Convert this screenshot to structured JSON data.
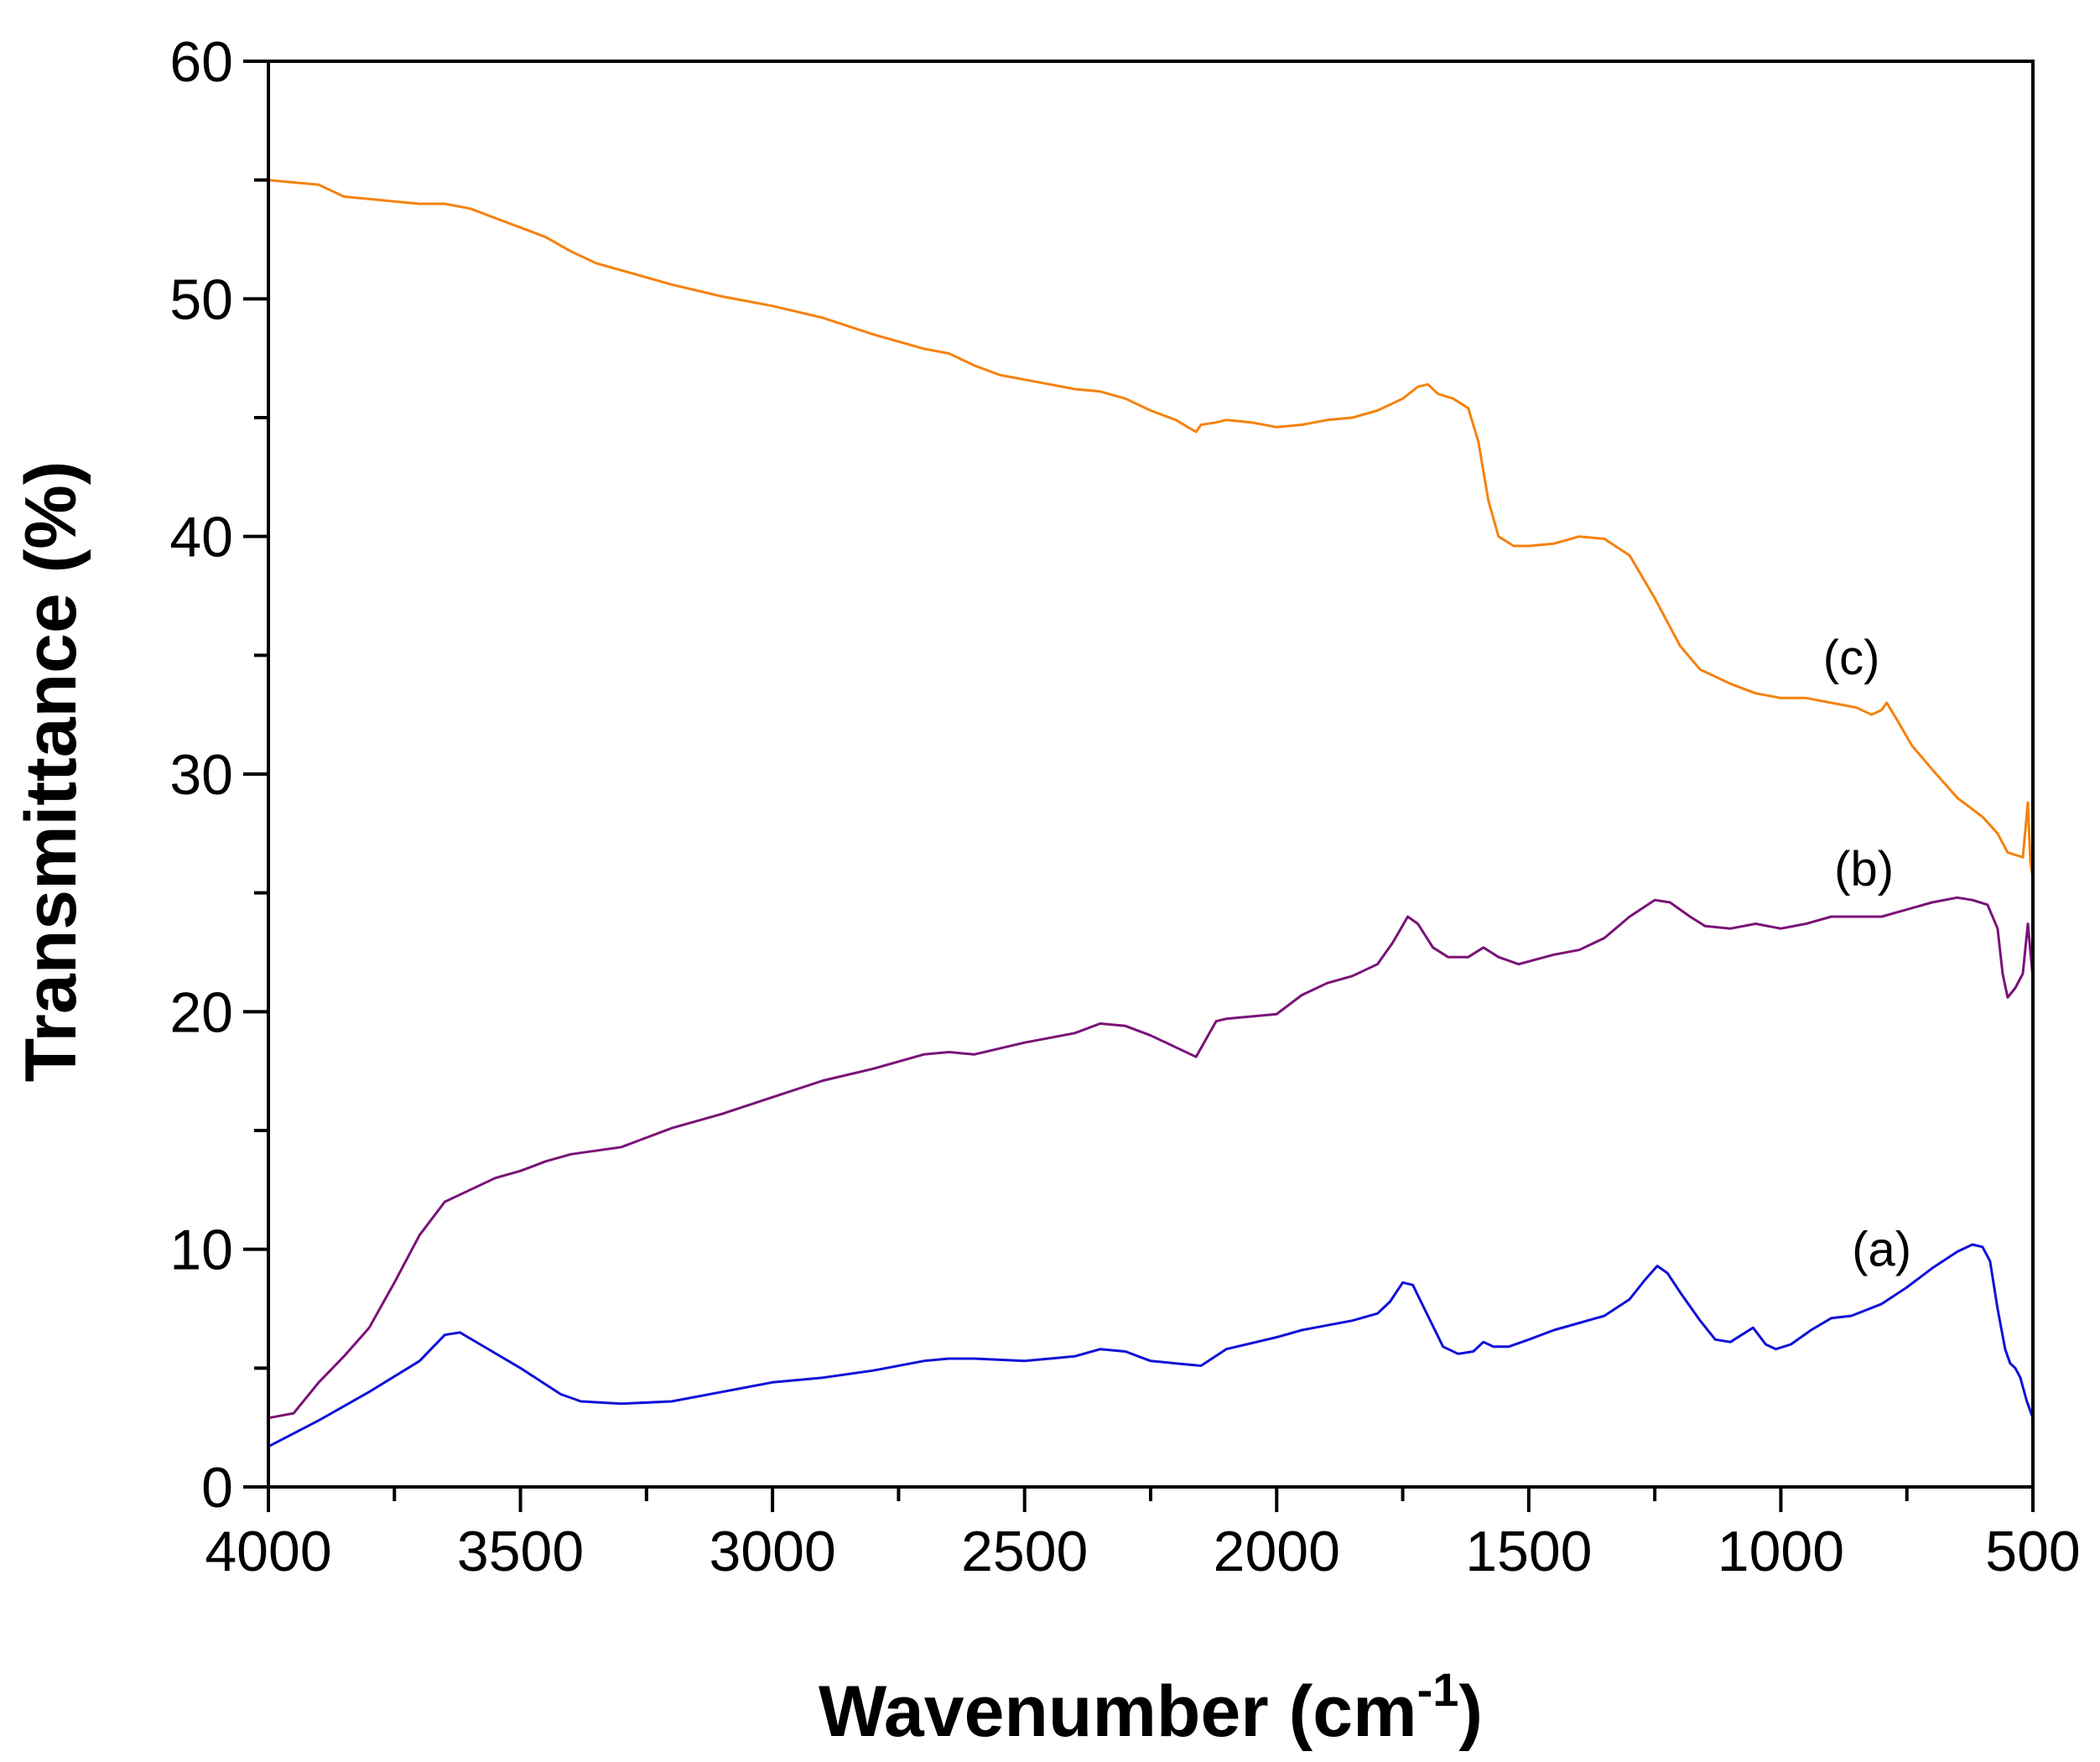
{
  "chart_data": {
    "type": "line",
    "title": "",
    "xlabel": "Wavenumber (cm",
    "xlabel_sup": "-1",
    "xlabel_tail": ")",
    "ylabel": "Transmittance (%)",
    "xlim": [
      4000,
      500
    ],
    "ylim": [
      0,
      60
    ],
    "x_ticks": [
      4000,
      3500,
      3000,
      2500,
      2000,
      1500,
      1000,
      500
    ],
    "x_tick_labels": [
      "4000",
      "3500",
      "3000",
      "2500",
      "2000",
      "1500",
      "1000",
      "500"
    ],
    "x_minor_ticks": [
      3750,
      3250,
      2750,
      2250,
      1750,
      1250,
      750
    ],
    "y_ticks": [
      0,
      10,
      20,
      30,
      40,
      50,
      60
    ],
    "y_tick_labels": [
      "0",
      "10",
      "20",
      "30",
      "40",
      "50",
      "60"
    ],
    "y_minor_ticks": [
      5,
      15,
      25,
      35,
      45,
      55
    ],
    "grid": false,
    "series": [
      {
        "name": "(a)",
        "color": "#1010d8",
        "label_at": [
          800,
          9.3
        ],
        "points": [
          [
            4000,
            1.7
          ],
          [
            3900,
            2.8
          ],
          [
            3800,
            4.0
          ],
          [
            3700,
            5.3
          ],
          [
            3650,
            6.4
          ],
          [
            3620,
            6.5
          ],
          [
            3580,
            6.0
          ],
          [
            3500,
            5.0
          ],
          [
            3420,
            3.9
          ],
          [
            3380,
            3.6
          ],
          [
            3300,
            3.5
          ],
          [
            3200,
            3.6
          ],
          [
            3100,
            4.0
          ],
          [
            3000,
            4.4
          ],
          [
            2900,
            4.6
          ],
          [
            2800,
            4.9
          ],
          [
            2700,
            5.3
          ],
          [
            2650,
            5.4
          ],
          [
            2600,
            5.4
          ],
          [
            2500,
            5.3
          ],
          [
            2400,
            5.5
          ],
          [
            2350,
            5.8
          ],
          [
            2300,
            5.7
          ],
          [
            2250,
            5.3
          ],
          [
            2200,
            5.2
          ],
          [
            2150,
            5.1
          ],
          [
            2100,
            5.8
          ],
          [
            2000,
            6.3
          ],
          [
            1950,
            6.6
          ],
          [
            1900,
            6.8
          ],
          [
            1850,
            7.0
          ],
          [
            1800,
            7.3
          ],
          [
            1775,
            7.8
          ],
          [
            1750,
            8.6
          ],
          [
            1730,
            8.5
          ],
          [
            1700,
            7.2
          ],
          [
            1670,
            5.9
          ],
          [
            1640,
            5.6
          ],
          [
            1610,
            5.7
          ],
          [
            1590,
            6.1
          ],
          [
            1570,
            5.9
          ],
          [
            1540,
            5.9
          ],
          [
            1500,
            6.2
          ],
          [
            1450,
            6.6
          ],
          [
            1400,
            6.9
          ],
          [
            1350,
            7.2
          ],
          [
            1300,
            7.9
          ],
          [
            1270,
            8.7
          ],
          [
            1245,
            9.3
          ],
          [
            1225,
            9.0
          ],
          [
            1200,
            8.2
          ],
          [
            1160,
            7.0
          ],
          [
            1130,
            6.2
          ],
          [
            1100,
            6.1
          ],
          [
            1070,
            6.5
          ],
          [
            1055,
            6.7
          ],
          [
            1030,
            6.0
          ],
          [
            1010,
            5.8
          ],
          [
            980,
            6.0
          ],
          [
            940,
            6.6
          ],
          [
            900,
            7.1
          ],
          [
            860,
            7.2
          ],
          [
            800,
            7.7
          ],
          [
            750,
            8.4
          ],
          [
            700,
            9.2
          ],
          [
            650,
            9.9
          ],
          [
            620,
            10.2
          ],
          [
            600,
            10.1
          ],
          [
            585,
            9.5
          ],
          [
            570,
            7.5
          ],
          [
            555,
            5.8
          ],
          [
            545,
            5.2
          ],
          [
            535,
            5.0
          ],
          [
            525,
            4.6
          ],
          [
            512,
            3.6
          ],
          [
            500,
            2.9
          ]
        ]
      },
      {
        "name": "(b)",
        "color": "#7a1278",
        "label_at": [
          835,
          25.3
        ],
        "points": [
          [
            4000,
            2.9
          ],
          [
            3950,
            3.1
          ],
          [
            3900,
            4.4
          ],
          [
            3850,
            5.5
          ],
          [
            3800,
            6.7
          ],
          [
            3750,
            8.6
          ],
          [
            3700,
            10.6
          ],
          [
            3650,
            12.0
          ],
          [
            3600,
            12.5
          ],
          [
            3550,
            13.0
          ],
          [
            3500,
            13.3
          ],
          [
            3450,
            13.7
          ],
          [
            3400,
            14.0
          ],
          [
            3300,
            14.3
          ],
          [
            3200,
            15.1
          ],
          [
            3100,
            15.7
          ],
          [
            3000,
            16.4
          ],
          [
            2900,
            17.1
          ],
          [
            2800,
            17.6
          ],
          [
            2700,
            18.2
          ],
          [
            2650,
            18.3
          ],
          [
            2600,
            18.2
          ],
          [
            2500,
            18.7
          ],
          [
            2400,
            19.1
          ],
          [
            2350,
            19.5
          ],
          [
            2300,
            19.4
          ],
          [
            2250,
            19.0
          ],
          [
            2200,
            18.5
          ],
          [
            2160,
            18.1
          ],
          [
            2120,
            19.6
          ],
          [
            2100,
            19.7
          ],
          [
            2000,
            19.9
          ],
          [
            1950,
            20.7
          ],
          [
            1900,
            21.2
          ],
          [
            1850,
            21.5
          ],
          [
            1800,
            22.0
          ],
          [
            1770,
            22.9
          ],
          [
            1740,
            24.0
          ],
          [
            1720,
            23.7
          ],
          [
            1690,
            22.7
          ],
          [
            1660,
            22.3
          ],
          [
            1620,
            22.3
          ],
          [
            1590,
            22.7
          ],
          [
            1560,
            22.3
          ],
          [
            1520,
            22.0
          ],
          [
            1450,
            22.4
          ],
          [
            1400,
            22.6
          ],
          [
            1350,
            23.1
          ],
          [
            1300,
            24.0
          ],
          [
            1250,
            24.7
          ],
          [
            1220,
            24.6
          ],
          [
            1180,
            24.0
          ],
          [
            1150,
            23.6
          ],
          [
            1100,
            23.5
          ],
          [
            1050,
            23.7
          ],
          [
            1000,
            23.5
          ],
          [
            950,
            23.7
          ],
          [
            900,
            24.0
          ],
          [
            800,
            24.0
          ],
          [
            700,
            24.6
          ],
          [
            650,
            24.8
          ],
          [
            620,
            24.7
          ],
          [
            590,
            24.5
          ],
          [
            570,
            23.5
          ],
          [
            560,
            21.6
          ],
          [
            550,
            20.6
          ],
          [
            535,
            21.0
          ],
          [
            520,
            21.6
          ],
          [
            510,
            23.7
          ],
          [
            500,
            21.4
          ]
        ]
      },
      {
        "name": "(c)",
        "color": "#f5820f",
        "label_at": [
          860,
          34.2
        ],
        "points": [
          [
            4000,
            55.0
          ],
          [
            3950,
            54.9
          ],
          [
            3900,
            54.8
          ],
          [
            3850,
            54.3
          ],
          [
            3800,
            54.2
          ],
          [
            3750,
            54.1
          ],
          [
            3700,
            54.0
          ],
          [
            3650,
            54.0
          ],
          [
            3600,
            53.8
          ],
          [
            3550,
            53.4
          ],
          [
            3500,
            53.0
          ],
          [
            3450,
            52.6
          ],
          [
            3400,
            52.0
          ],
          [
            3350,
            51.5
          ],
          [
            3300,
            51.2
          ],
          [
            3250,
            50.9
          ],
          [
            3200,
            50.6
          ],
          [
            3100,
            50.1
          ],
          [
            3000,
            49.7
          ],
          [
            2900,
            49.2
          ],
          [
            2800,
            48.5
          ],
          [
            2700,
            47.9
          ],
          [
            2650,
            47.7
          ],
          [
            2600,
            47.2
          ],
          [
            2550,
            46.8
          ],
          [
            2500,
            46.6
          ],
          [
            2450,
            46.4
          ],
          [
            2400,
            46.2
          ],
          [
            2350,
            46.1
          ],
          [
            2300,
            45.8
          ],
          [
            2250,
            45.3
          ],
          [
            2200,
            44.9
          ],
          [
            2160,
            44.4
          ],
          [
            2150,
            44.7
          ],
          [
            2120,
            44.8
          ],
          [
            2100,
            44.9
          ],
          [
            2050,
            44.8
          ],
          [
            2000,
            44.6
          ],
          [
            1950,
            44.7
          ],
          [
            1900,
            44.9
          ],
          [
            1850,
            45.0
          ],
          [
            1800,
            45.3
          ],
          [
            1750,
            45.8
          ],
          [
            1720,
            46.3
          ],
          [
            1700,
            46.4
          ],
          [
            1680,
            46.0
          ],
          [
            1650,
            45.8
          ],
          [
            1620,
            45.4
          ],
          [
            1600,
            44.0
          ],
          [
            1580,
            41.5
          ],
          [
            1560,
            40.0
          ],
          [
            1530,
            39.6
          ],
          [
            1500,
            39.6
          ],
          [
            1450,
            39.7
          ],
          [
            1400,
            40.0
          ],
          [
            1350,
            39.9
          ],
          [
            1300,
            39.2
          ],
          [
            1250,
            37.4
          ],
          [
            1200,
            35.4
          ],
          [
            1160,
            34.4
          ],
          [
            1100,
            33.8
          ],
          [
            1050,
            33.4
          ],
          [
            1000,
            33.2
          ],
          [
            950,
            33.2
          ],
          [
            900,
            33.0
          ],
          [
            850,
            32.8
          ],
          [
            820,
            32.5
          ],
          [
            800,
            32.7
          ],
          [
            790,
            33.0
          ],
          [
            770,
            32.3
          ],
          [
            740,
            31.2
          ],
          [
            700,
            30.2
          ],
          [
            650,
            29.0
          ],
          [
            600,
            28.2
          ],
          [
            570,
            27.5
          ],
          [
            550,
            26.7
          ],
          [
            520,
            26.5
          ],
          [
            510,
            28.8
          ],
          [
            505,
            26.3
          ],
          [
            500,
            25.6
          ]
        ]
      }
    ]
  }
}
